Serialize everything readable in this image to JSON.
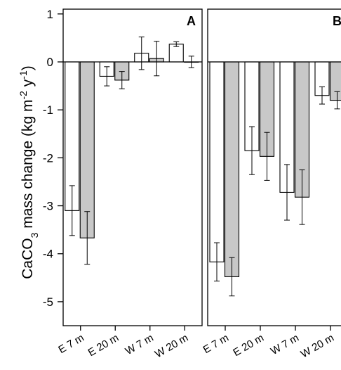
{
  "chart_data": {
    "type": "bar",
    "ylabel": {
      "main": "CaCO",
      "sub": "3",
      "rest": " mass change (kg m",
      "sup1": "-2",
      "mid": " y",
      "sup2": "-1",
      "end": ")"
    },
    "ylim": [
      -5.5,
      1.1
    ],
    "yticks": [
      1,
      0,
      -1,
      -2,
      -3,
      -4,
      -5
    ],
    "ytick_labels": [
      "1",
      "0",
      "-1",
      "-2",
      "-3",
      "-4",
      "-5"
    ],
    "grid": false,
    "colors": {
      "series_open": "#ffffff",
      "series_grey": "#c8c8c8",
      "stroke": "#000000"
    },
    "panels": [
      {
        "label": "A",
        "categories": [
          "E 7 m",
          "E 20 m",
          "W 7 m",
          "W 20 m"
        ],
        "series": [
          {
            "values": [
              -3.1,
              -0.3,
              0.18,
              0.37
            ],
            "errors": [
              0.52,
              0.2,
              0.34,
              0.05
            ]
          },
          {
            "values": [
              -3.67,
              -0.38,
              0.07,
              0.0
            ],
            "errors": [
              0.55,
              0.18,
              0.36,
              0.12
            ]
          }
        ]
      },
      {
        "label": "B",
        "categories": [
          "E 7 m",
          "E 20 m",
          "W 7 m",
          "W 20 m"
        ],
        "series": [
          {
            "values": [
              -4.17,
              -1.85,
              -2.72,
              -0.7
            ],
            "errors": [
              0.4,
              0.5,
              0.58,
              0.18
            ]
          },
          {
            "values": [
              -4.48,
              -1.97,
              -2.82,
              -0.8
            ],
            "errors": [
              0.4,
              0.5,
              0.57,
              0.18
            ]
          }
        ]
      }
    ]
  }
}
